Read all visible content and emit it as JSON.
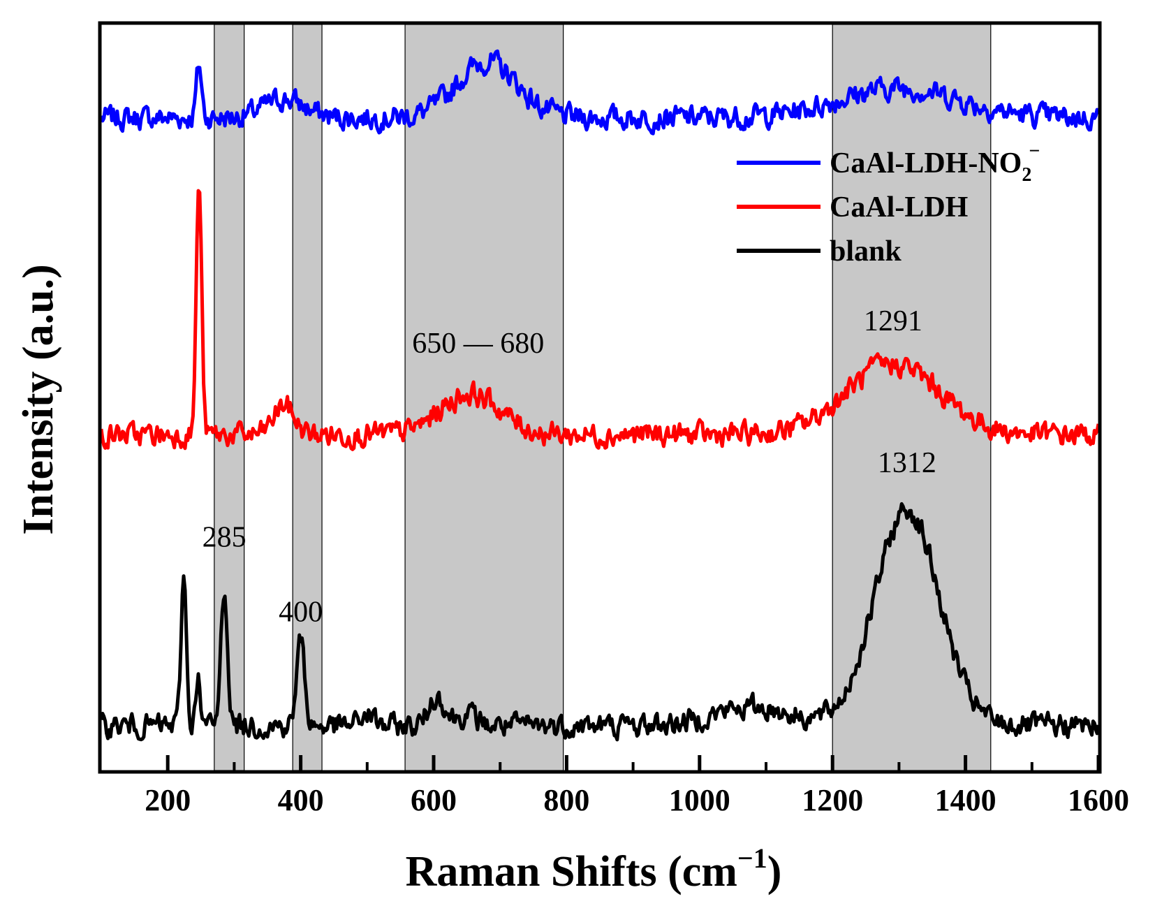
{
  "chart_data": {
    "type": "line",
    "title": "",
    "xlabel": "Raman Shifts (cm",
    "xlabel_sup": "−1",
    "xlabel_close": ")",
    "ylabel": "Intensity (a.u.)",
    "xlim": [
      100,
      1600
    ],
    "ylim": [
      0,
      100
    ],
    "x_ticks": [
      200,
      400,
      600,
      800,
      1000,
      1200,
      1400,
      1600
    ],
    "x_minor_ticks": [
      300,
      500,
      700,
      900,
      1100,
      1300,
      1500
    ],
    "y_ticks_shown": false,
    "shaded_regions": [
      {
        "x0": 270,
        "x1": 315
      },
      {
        "x0": 388,
        "x1": 432
      },
      {
        "x0": 557,
        "x1": 795
      },
      {
        "x0": 1200,
        "x1": 1438
      }
    ],
    "series": [
      {
        "name": "CaAl-LDH-NO2",
        "legend_main": "CaAl-LDH-NO",
        "legend_sub": "2",
        "legend_sup": "−",
        "color": "#0000ff",
        "baseline": 87.5,
        "peaks": [
          {
            "x": 247,
            "h": 7.0,
            "w": 4
          },
          {
            "x": 375,
            "h": 2.5,
            "w": 30
          },
          {
            "x": 680,
            "h": 7.5,
            "w": 45
          },
          {
            "x": 1300,
            "h": 4.0,
            "w": 90
          }
        ]
      },
      {
        "name": "CaAl-LDH",
        "legend_main": "CaAl-LDH",
        "color": "#ff0000",
        "baseline": 45.0,
        "peaks": [
          {
            "x": 247,
            "h": 34.0,
            "w": 4
          },
          {
            "x": 375,
            "h": 4.0,
            "w": 15
          },
          {
            "x": 655,
            "h": 5.5,
            "w": 45
          },
          {
            "x": 1291,
            "h": 9.5,
            "w": 70
          }
        ]
      },
      {
        "name": "blank",
        "legend_main": "blank",
        "color": "#000000",
        "baseline": 6.0,
        "peaks": [
          {
            "x": 224,
            "h": 20.0,
            "w": 4
          },
          {
            "x": 245,
            "h": 7.0,
            "w": 3
          },
          {
            "x": 285,
            "h": 18.5,
            "w": 5
          },
          {
            "x": 400,
            "h": 11.5,
            "w": 6
          },
          {
            "x": 500,
            "h": 1.5,
            "w": 10
          },
          {
            "x": 605,
            "h": 4.0,
            "w": 12
          },
          {
            "x": 650,
            "h": 1.5,
            "w": 15
          },
          {
            "x": 1080,
            "h": 2.5,
            "w": 60
          },
          {
            "x": 1312,
            "h": 29.0,
            "w": 48
          }
        ]
      }
    ],
    "annotations": [
      {
        "text": "285",
        "x": 285,
        "y": 30
      },
      {
        "text": "400",
        "x": 400,
        "y": 20
      },
      {
        "text": "650 — 680",
        "x": 667,
        "y": 56
      },
      {
        "text": "1291",
        "x": 1291,
        "y": 59
      },
      {
        "text": "1312",
        "x": 1312,
        "y": 40
      }
    ],
    "legend_position": "top-right"
  }
}
